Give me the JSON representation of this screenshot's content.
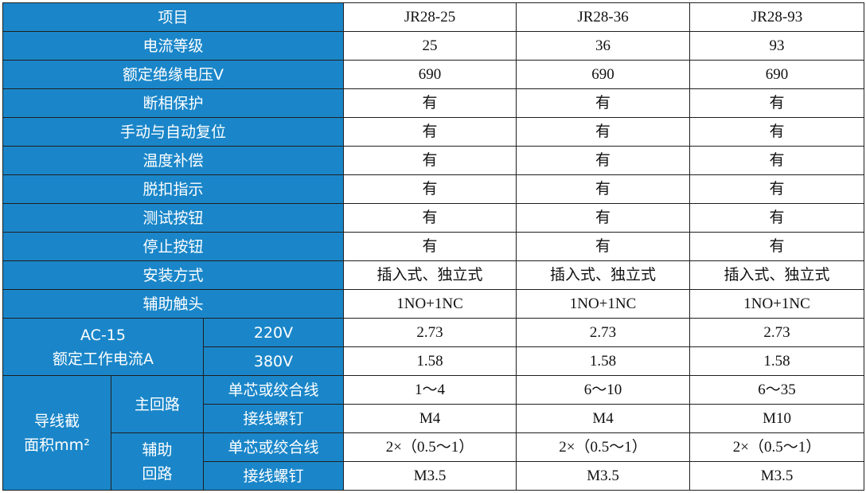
{
  "header": {
    "label": "项目",
    "columns": [
      "JR28-25",
      "JR28-36",
      "JR28-93"
    ]
  },
  "rows": [
    {
      "label": "电流等级",
      "values": [
        "25",
        "36",
        "93"
      ]
    },
    {
      "label": "额定绝缘电压V",
      "values": [
        "690",
        "690",
        "690"
      ]
    },
    {
      "label": "断相保护",
      "values": [
        "有",
        "有",
        "有"
      ]
    },
    {
      "label": "手动与自动复位",
      "values": [
        "有",
        "有",
        "有"
      ]
    },
    {
      "label": "温度补偿",
      "values": [
        "有",
        "有",
        "有"
      ]
    },
    {
      "label": "脱扣指示",
      "values": [
        "有",
        "有",
        "有"
      ]
    },
    {
      "label": "测试按钮",
      "values": [
        "有",
        "有",
        "有"
      ]
    },
    {
      "label": "停止按钮",
      "values": [
        "有",
        "有",
        "有"
      ]
    },
    {
      "label": "安装方式",
      "values": [
        "插入式、独立式",
        "插入式、独立式",
        "插入式、独立式"
      ]
    },
    {
      "label": "辅助触头",
      "values": [
        "1NO+1NC",
        "1NO+1NC",
        "1NO+1NC"
      ]
    }
  ],
  "ac15": {
    "label_lines": [
      "AC-15",
      "额定工作电流A"
    ],
    "rows": [
      {
        "label": "220V",
        "values": [
          "2.73",
          "2.73",
          "2.73"
        ]
      },
      {
        "label": "380V",
        "values": [
          "1.58",
          "1.58",
          "1.58"
        ]
      }
    ]
  },
  "wire": {
    "label_lines": [
      "导线截",
      "面积mm²"
    ],
    "groups": [
      {
        "label_lines": [
          "主回路"
        ],
        "rows": [
          {
            "label": "单芯或绞合线",
            "values": [
              "1～4",
              "6～10",
              "6～35"
            ]
          },
          {
            "label": "接线螺钉",
            "values": [
              "M4",
              "M4",
              "M10"
            ]
          }
        ]
      },
      {
        "label_lines": [
          "辅助",
          "回路"
        ],
        "rows": [
          {
            "label": "单芯或绞合线",
            "values": [
              "2×（0.5～1）",
              "2×（0.5～1）",
              "2×（0.5～1）"
            ]
          },
          {
            "label": "接线螺钉",
            "values": [
              "M3.5",
              "M3.5",
              "M3.5"
            ]
          }
        ]
      }
    ]
  }
}
